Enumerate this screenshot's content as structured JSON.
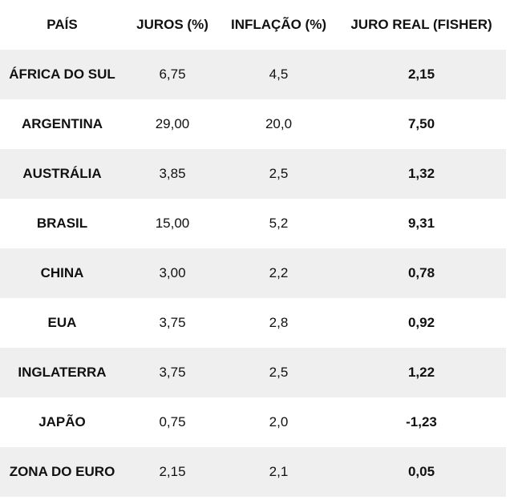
{
  "table": {
    "header": [
      "PAÍS",
      "JUROS (%)",
      "INFLAÇÃO (%)",
      "JURO REAL (FISHER)"
    ],
    "rows": [
      [
        "ÁFRICA DO SUL",
        "6,75",
        "4,5",
        "2,15"
      ],
      [
        "ARGENTINA",
        "29,00",
        "20,0",
        "7,50"
      ],
      [
        "AUSTRÁLIA",
        "3,85",
        "2,5",
        "1,32"
      ],
      [
        "BRASIL",
        "15,00",
        "5,2",
        "9,31"
      ],
      [
        "CHINA",
        "3,00",
        "2,2",
        "0,78"
      ],
      [
        "EUA",
        "3,75",
        "2,8",
        "0,92"
      ],
      [
        "INGLATERRA",
        "3,75",
        "2,5",
        "1,22"
      ],
      [
        "JAPÃO",
        "0,75",
        "2,0",
        "-1,23"
      ],
      [
        "ZONA DO EURO",
        "2,15",
        "2,1",
        "0,05"
      ]
    ]
  }
}
